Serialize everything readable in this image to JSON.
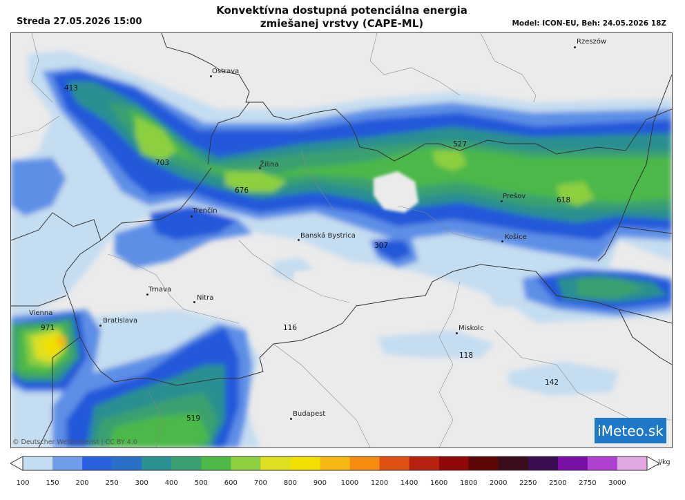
{
  "header": {
    "datetime": "Streda 27.05.2026 15:00",
    "title_line1": "Konvektívna dostupná potenciálna energia",
    "title_line2": "zmiešanej vrstvy (CAPE-ML)",
    "model_info": "Model: ICON-EU, Beh: 24.05.2026 18Z"
  },
  "cities": [
    {
      "id": "ostrava",
      "name": "Ostrava"
    },
    {
      "id": "zilina",
      "name": "Žilina"
    },
    {
      "id": "trencin",
      "name": "Trenčín"
    },
    {
      "id": "banska-bystrica",
      "name": "Banská Bystrica"
    },
    {
      "id": "presov",
      "name": "Prešov"
    },
    {
      "id": "kosice",
      "name": "Košice"
    },
    {
      "id": "trnava",
      "name": "Trnava"
    },
    {
      "id": "nitra",
      "name": "Nitra"
    },
    {
      "id": "vienna",
      "name": "Vienna"
    },
    {
      "id": "bratislava",
      "name": "Bratislava"
    },
    {
      "id": "miskolc",
      "name": "Miskolc"
    },
    {
      "id": "budapest",
      "name": "Budapest"
    },
    {
      "id": "rzeszow",
      "name": "Rzeszów"
    }
  ],
  "values": [
    "413",
    "703",
    "676",
    "527",
    "618",
    "307",
    "971",
    "116",
    "118",
    "142",
    "519"
  ],
  "attribution": "© Deutscher Wetterdienst | CC BY 4.0",
  "logo": "iMeteo.sk",
  "colorbar": {
    "unit": "J/kg",
    "labels": [
      "100",
      "150",
      "200",
      "250",
      "300",
      "400",
      "500",
      "600",
      "700",
      "800",
      "900",
      "1000",
      "1200",
      "1400",
      "1600",
      "1800",
      "2000",
      "2250",
      "2500",
      "2750",
      "3000"
    ],
    "colors": [
      "#c5ddf0",
      "#6f9ee8",
      "#2862e0",
      "#2a6fc8",
      "#2a9090",
      "#3aa070",
      "#4cb848",
      "#8cd040",
      "#dde020",
      "#f0e000",
      "#f5b810",
      "#f58c10",
      "#e05010",
      "#b82010",
      "#900808",
      "#5c0808",
      "#3a0c1c",
      "#3a0c50",
      "#7a10a8",
      "#b040d0",
      "#e0a8e0"
    ]
  }
}
